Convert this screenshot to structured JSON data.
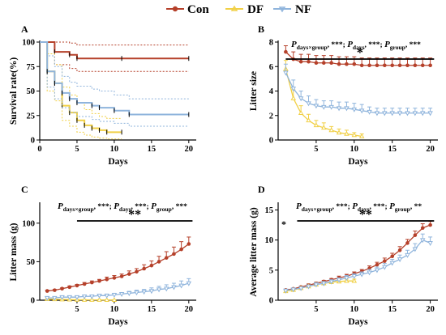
{
  "legend": {
    "items": [
      {
        "label": "Con",
        "color": "#b5402a"
      },
      {
        "label": "DF",
        "color": "#f1d046"
      },
      {
        "label": "NF",
        "color": "#8fb4dc"
      }
    ]
  },
  "chart_data": [
    {
      "panel": "A",
      "type": "line",
      "step": true,
      "xlabel": "Days",
      "ylabel": "Survival rate(%)",
      "xlim": [
        0,
        21
      ],
      "ylim": [
        0,
        100
      ],
      "xticks": [
        "0",
        "5",
        "10",
        "15",
        "20"
      ],
      "xtick_values": [
        0,
        5,
        10,
        15,
        20
      ],
      "yticks": [
        "0",
        "25",
        "50",
        "75",
        "100"
      ],
      "ytick_values": [
        0,
        25,
        50,
        75,
        100
      ],
      "series": [
        {
          "name": "Con",
          "color": "#b5402a",
          "x": [
            0,
            2,
            4,
            5,
            11,
            20
          ],
          "y": [
            100,
            90,
            87,
            83.3,
            83.3,
            83.3
          ],
          "upper": [
            100,
            100,
            99,
            97,
            97,
            97
          ],
          "lower": [
            100,
            77,
            73,
            70,
            70,
            70
          ]
        },
        {
          "name": "DF",
          "color": "#f1d046",
          "x": [
            0,
            1,
            2,
            3,
            4,
            5,
            6,
            7,
            8,
            9,
            11
          ],
          "y": [
            100,
            70,
            58,
            35,
            28,
            20,
            15,
            12,
            10,
            8,
            8
          ],
          "upper": [
            100,
            88,
            77,
            54,
            46,
            38,
            31,
            27,
            24,
            22,
            22
          ],
          "lower": [
            100,
            50,
            40,
            20,
            14,
            8,
            5,
            3,
            2,
            1,
            1
          ]
        },
        {
          "name": "NF",
          "color": "#8fb4dc",
          "x": [
            0,
            1,
            2,
            3,
            4,
            5,
            7,
            8,
            10,
            12,
            20
          ],
          "y": [
            100,
            70,
            58,
            48,
            42,
            38,
            35,
            33,
            30,
            26,
            26
          ],
          "upper": [
            100,
            86,
            75,
            65,
            59,
            55,
            52,
            50,
            46,
            42,
            42
          ],
          "lower": [
            100,
            54,
            42,
            33,
            28,
            24,
            21,
            19,
            17,
            14,
            14
          ]
        }
      ]
    },
    {
      "panel": "B",
      "type": "line",
      "xlabel": "Days",
      "ylabel": "Litter size",
      "xlim": [
        0,
        21
      ],
      "ylim": [
        0,
        8
      ],
      "xticks": [
        "5",
        "10",
        "15",
        "20"
      ],
      "xtick_values": [
        5,
        10,
        15,
        20
      ],
      "yticks": [
        "0",
        "2",
        "4",
        "6",
        "8"
      ],
      "ytick_values": [
        0,
        2,
        4,
        6,
        8
      ],
      "stats": {
        "days_group": "***",
        "days": "***",
        "group": "***"
      },
      "significance": {
        "label": "*",
        "x_range": [
          1,
          20.5
        ]
      },
      "series": [
        {
          "name": "Con",
          "color": "#b5402a",
          "x": [
            1,
            2,
            3,
            4,
            5,
            6,
            7,
            8,
            9,
            10,
            11,
            12,
            13,
            14,
            15,
            16,
            17,
            18,
            19,
            20
          ],
          "y": [
            7.2,
            6.6,
            6.4,
            6.4,
            6.3,
            6.3,
            6.3,
            6.2,
            6.2,
            6.2,
            6.1,
            6.1,
            6.1,
            6.1,
            6.1,
            6.1,
            6.1,
            6.1,
            6.1,
            6.1
          ],
          "err": [
            0.5,
            0.6,
            0.6,
            0.6,
            0.6,
            0.6,
            0.6,
            0.6,
            0.6,
            0.6,
            0.6,
            0.6,
            0.6,
            0.6,
            0.6,
            0.6,
            0.6,
            0.6,
            0.6,
            0.6
          ]
        },
        {
          "name": "DF",
          "color": "#f1d046",
          "x": [
            1,
            2,
            3,
            4,
            5,
            6,
            7,
            8,
            9,
            10,
            11
          ],
          "y": [
            5.8,
            3.4,
            2.2,
            1.6,
            1.2,
            1.0,
            0.8,
            0.6,
            0.5,
            0.4,
            0.3
          ],
          "err": [
            0.7,
            0.7,
            0.6,
            0.5,
            0.4,
            0.4,
            0.3,
            0.3,
            0.3,
            0.2,
            0.2
          ]
        },
        {
          "name": "NF",
          "color": "#8fb4dc",
          "x": [
            1,
            2,
            3,
            4,
            5,
            6,
            7,
            8,
            9,
            10,
            11,
            12,
            13,
            14,
            15,
            16,
            17,
            18,
            19,
            20
          ],
          "y": [
            5.5,
            4.2,
            3.4,
            3.0,
            2.8,
            2.7,
            2.7,
            2.6,
            2.6,
            2.5,
            2.4,
            2.3,
            2.2,
            2.2,
            2.2,
            2.2,
            2.2,
            2.2,
            2.2,
            2.2
          ],
          "err": [
            0.7,
            0.7,
            0.6,
            0.6,
            0.5,
            0.5,
            0.5,
            0.5,
            0.5,
            0.5,
            0.5,
            0.4,
            0.4,
            0.4,
            0.4,
            0.4,
            0.4,
            0.4,
            0.4,
            0.4
          ]
        }
      ]
    },
    {
      "panel": "C",
      "type": "line",
      "xlabel": "Days",
      "ylabel": "Litter mass (g)",
      "xlim": [
        0,
        21
      ],
      "ylim": [
        0,
        125
      ],
      "xticks": [
        "5",
        "10",
        "15",
        "20"
      ],
      "xtick_values": [
        5,
        10,
        15,
        20
      ],
      "yticks": [
        "0",
        "50",
        "100"
      ],
      "ytick_values": [
        0,
        50,
        100
      ],
      "stats": {
        "days_group": "***",
        "days": "***",
        "group": "***"
      },
      "significance": {
        "label": "**",
        "x_range": [
          5,
          20.5
        ]
      },
      "series": [
        {
          "name": "Con",
          "color": "#b5402a",
          "x": [
            1,
            2,
            3,
            4,
            5,
            6,
            7,
            8,
            9,
            10,
            11,
            12,
            13,
            14,
            15,
            16,
            17,
            18,
            19,
            20
          ],
          "y": [
            12,
            13,
            15,
            17,
            19,
            21,
            23,
            25,
            27,
            29,
            31,
            34,
            37,
            41,
            45,
            50,
            55,
            60,
            66,
            73
          ],
          "err": [
            1,
            1,
            1,
            1.5,
            1.5,
            2,
            2,
            2,
            3,
            3,
            3,
            4,
            4,
            5,
            6,
            7,
            8,
            9,
            10,
            9
          ]
        },
        {
          "name": "DF",
          "color": "#f1d046",
          "x": [
            1,
            2,
            3,
            4,
            5,
            6,
            7,
            8,
            9,
            10
          ],
          "y": [
            1.5,
            1.2,
            1,
            0.8,
            0.6,
            0.5,
            0.4,
            0.4,
            0.3,
            0.3
          ],
          "err": [
            0.5,
            0.5,
            0.4,
            0.4,
            0.3,
            0.3,
            0.3,
            0.3,
            0.2,
            0.2
          ]
        },
        {
          "name": "NF",
          "color": "#8fb4dc",
          "x": [
            1,
            2,
            3,
            4,
            5,
            6,
            7,
            8,
            9,
            10,
            11,
            12,
            13,
            14,
            15,
            16,
            17,
            18,
            19,
            20
          ],
          "y": [
            3,
            3,
            4,
            4,
            4,
            5,
            5,
            6,
            6,
            7,
            8,
            9,
            10,
            11,
            12,
            14,
            15,
            17,
            19,
            22
          ],
          "err": [
            1,
            1,
            1,
            1,
            1,
            1,
            1.5,
            1.5,
            2,
            2,
            2,
            2.5,
            3,
            3,
            4,
            4,
            5,
            5,
            6,
            6
          ]
        }
      ]
    },
    {
      "panel": "D",
      "type": "line",
      "xlabel": "Days",
      "ylabel": "Average litter mass (g)",
      "xlim": [
        0,
        21
      ],
      "ylim": [
        0,
        16
      ],
      "xticks": [
        "5",
        "10",
        "15",
        "20"
      ],
      "xtick_values": [
        5,
        10,
        15,
        20
      ],
      "yticks": [
        "0",
        "5",
        "10",
        "15"
      ],
      "ytick_values": [
        0,
        5,
        10,
        15
      ],
      "stats": {
        "days_group": "***",
        "days": "***",
        "group": "**"
      },
      "significance": {
        "label": "**",
        "x_range": [
          2.5,
          20.5
        ]
      },
      "side_mark": "*",
      "series": [
        {
          "name": "Con",
          "color": "#b5402a",
          "x": [
            1,
            2,
            3,
            4,
            5,
            6,
            7,
            8,
            9,
            10,
            11,
            12,
            13,
            14,
            15,
            16,
            17,
            18,
            19,
            20
          ],
          "y": [
            1.7,
            1.9,
            2.2,
            2.5,
            2.8,
            3.1,
            3.4,
            3.7,
            4.0,
            4.4,
            4.8,
            5.3,
            5.9,
            6.5,
            7.3,
            8.3,
            9.5,
            10.8,
            12.0,
            12.5
          ],
          "err": [
            0.1,
            0.1,
            0.1,
            0.2,
            0.2,
            0.2,
            0.2,
            0.3,
            0.3,
            0.3,
            0.3,
            0.4,
            0.4,
            0.5,
            0.5,
            0.6,
            0.6,
            0.7,
            0.7,
            0.6
          ]
        },
        {
          "name": "DF",
          "color": "#f1d046",
          "x": [
            1,
            2,
            3,
            4,
            5,
            6,
            7,
            8,
            9,
            10
          ],
          "y": [
            1.5,
            1.7,
            2.0,
            2.3,
            2.6,
            2.8,
            3.0,
            3.1,
            3.2,
            3.2
          ],
          "err": [
            0.1,
            0.2,
            0.2,
            0.2,
            0.3,
            0.3,
            0.3,
            0.3,
            0.3,
            0.3
          ]
        },
        {
          "name": "NF",
          "color": "#8fb4dc",
          "x": [
            1,
            2,
            3,
            4,
            5,
            6,
            7,
            8,
            9,
            10,
            11,
            12,
            13,
            14,
            15,
            16,
            17,
            18,
            19,
            20
          ],
          "y": [
            1.6,
            1.8,
            2.0,
            2.3,
            2.6,
            2.8,
            3.1,
            3.4,
            3.7,
            4.0,
            4.3,
            4.6,
            5.0,
            5.5,
            6.2,
            6.8,
            7.5,
            8.5,
            10.0,
            9.5
          ],
          "err": [
            0.1,
            0.2,
            0.2,
            0.2,
            0.3,
            0.3,
            0.3,
            0.3,
            0.4,
            0.4,
            0.4,
            0.5,
            0.5,
            0.6,
            0.6,
            0.7,
            0.8,
            0.9,
            1.0,
            1.0
          ]
        }
      ]
    }
  ]
}
